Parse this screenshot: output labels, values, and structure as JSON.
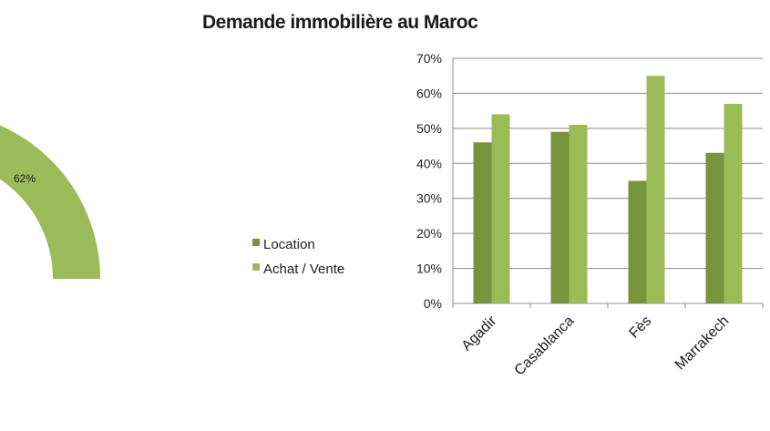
{
  "chart_data": [
    {
      "type": "pie",
      "title": "",
      "slices": [
        {
          "label": "",
          "value": 62,
          "value_label": "62%",
          "color": "#9bbb59"
        }
      ]
    },
    {
      "type": "bar",
      "title": "Demande immobilière au Maroc",
      "categories": [
        "Agadir",
        "Casablanca",
        "Fès",
        "Marrakech"
      ],
      "series": [
        {
          "name": "Location",
          "values": [
            46,
            49,
            35,
            43
          ],
          "color": "#77933c"
        },
        {
          "name": "Achat / Vente",
          "values": [
            54,
            51,
            65,
            57
          ],
          "color": "#9bbb59"
        }
      ],
      "xlabel": "",
      "ylabel": "",
      "ylim": [
        0,
        70
      ],
      "yticks": [
        0,
        10,
        20,
        30,
        40,
        50,
        60,
        70
      ],
      "ytick_labels": [
        "0%",
        "10%",
        "20%",
        "30%",
        "40%",
        "50%",
        "60%",
        "70%"
      ],
      "grid": true,
      "legend_position": "left"
    }
  ]
}
